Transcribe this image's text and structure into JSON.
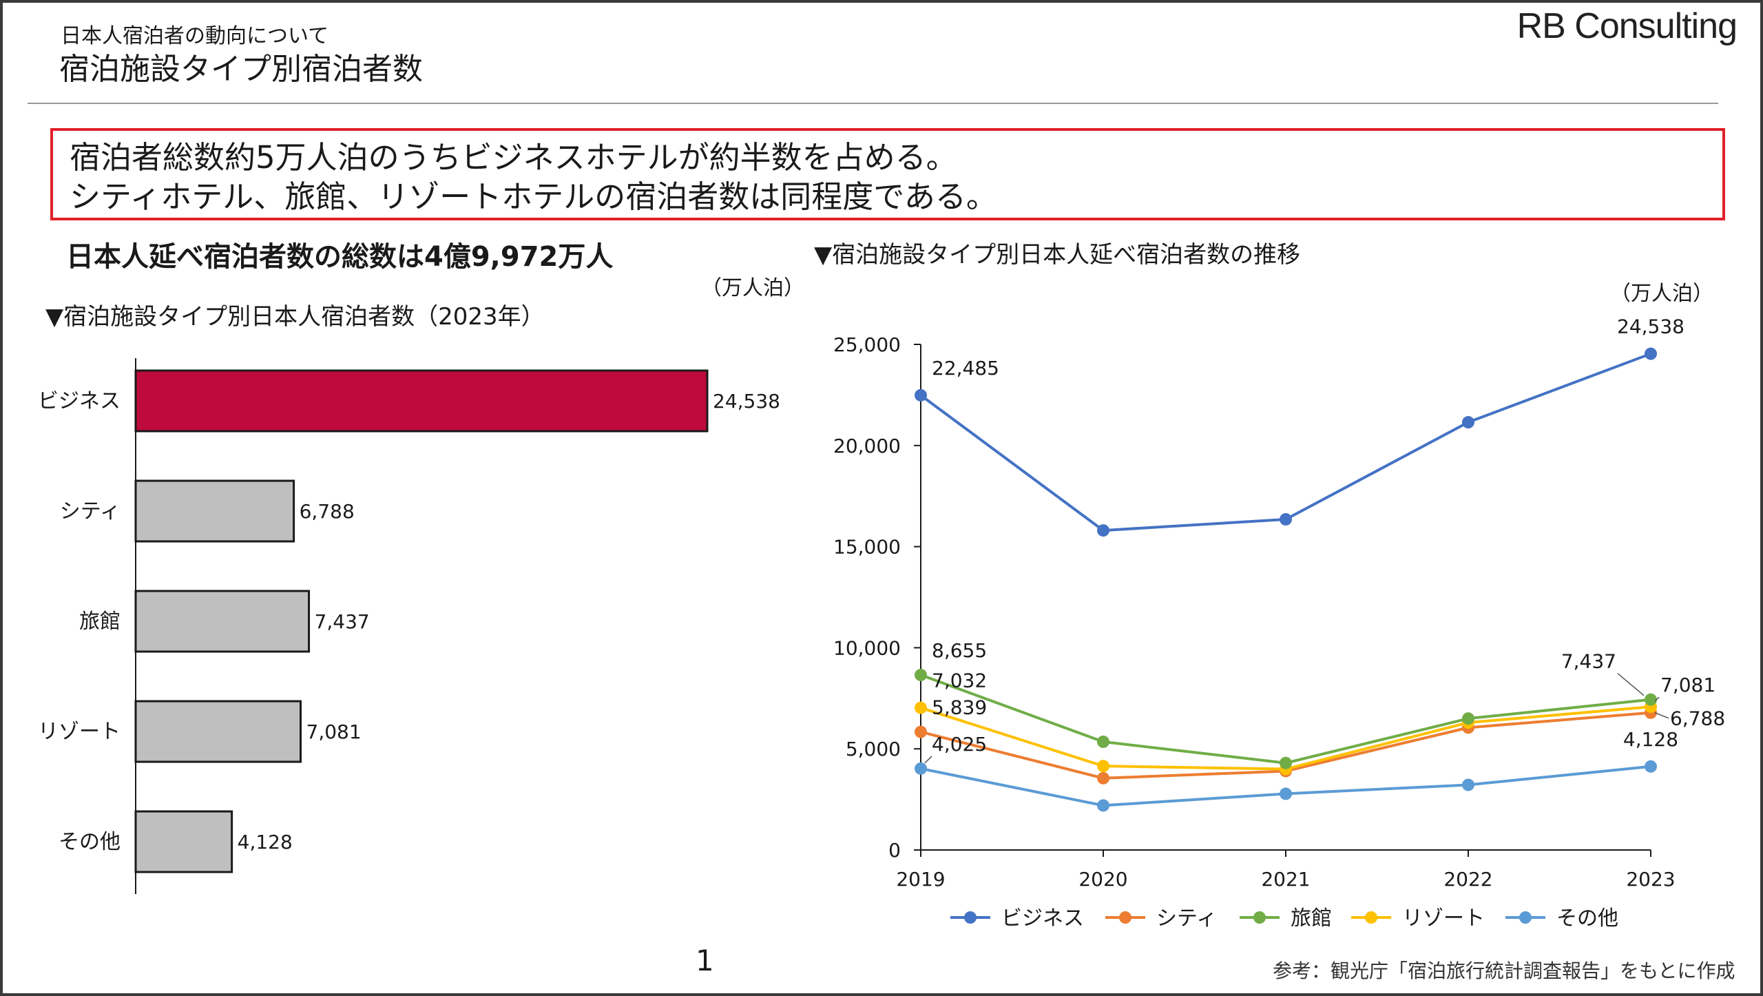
{
  "header": {
    "subtitle": "日本人宿泊者の動向について",
    "title": "宿泊施設タイプ別宿泊者数",
    "logo": "RB Consulting"
  },
  "summary": {
    "line1": "宿泊者総数約5万人泊のうちビジネスホテルが約半数を占める。",
    "line2": "シティホテル、旅館、リゾートホテルの宿泊者数は同程度である。"
  },
  "left_panel": {
    "heading": "日本人延べ宿泊者数の総数は4億9,972万人",
    "caption": "▼宿泊施設タイプ別日本人宿泊者数（2023年）",
    "unit": "（万人泊）"
  },
  "right_panel": {
    "caption": "▼宿泊施設タイプ別日本人延べ宿泊者数の推移",
    "unit": "（万人泊）"
  },
  "footer": {
    "page_number": "1",
    "source": "参考：観光庁「宿泊旅行統計調査報告」をもとに作成"
  },
  "colors": {
    "highlight_box": "#e0202a",
    "bar_highlight": "#be0a3c",
    "bar_default": "#bfbfbf"
  },
  "chart_data": [
    {
      "type": "bar",
      "orientation": "horizontal",
      "categories": [
        "ビジネス",
        "シティ",
        "旅館",
        "リゾート",
        "その他"
      ],
      "values": [
        24538,
        6788,
        7437,
        7081,
        4128
      ],
      "value_labels": [
        "24,538",
        "6,788",
        "7,437",
        "7,081",
        "4,128"
      ],
      "colors": [
        "#be0a3c",
        "#bfbfbf",
        "#bfbfbf",
        "#bfbfbf",
        "#bfbfbf"
      ],
      "xlim": [
        0,
        24538
      ],
      "grid": false,
      "legend": "none"
    },
    {
      "type": "line",
      "x": [
        2019,
        2020,
        2021,
        2022,
        2023
      ],
      "ylim": [
        0,
        25000
      ],
      "yticks": [
        0,
        5000,
        10000,
        15000,
        20000,
        25000
      ],
      "ytick_labels": [
        "0",
        "5,000",
        "10,000",
        "15,000",
        "20,000",
        "25,000"
      ],
      "grid": false,
      "legend": "bottom",
      "series": [
        {
          "name": "ビジネス",
          "color": "#4472c4",
          "values": [
            22485,
            15800,
            16350,
            21150,
            24538
          ],
          "labels": {
            "0": "22,485",
            "4": "24,538"
          }
        },
        {
          "name": "シティ",
          "color": "#ed7d31",
          "values": [
            5839,
            3550,
            3900,
            6050,
            6788
          ],
          "labels": {
            "0": "5,839",
            "4": "6,788"
          }
        },
        {
          "name": "旅館",
          "color": "#70ad47",
          "values": [
            8655,
            5350,
            4300,
            6500,
            7437
          ],
          "labels": {
            "0": "8,655",
            "4": "7,437"
          }
        },
        {
          "name": "リゾート",
          "color": "#ffc000",
          "values": [
            7032,
            4150,
            4000,
            6300,
            7081
          ],
          "labels": {
            "0": "7,032",
            "4": "7,081"
          }
        },
        {
          "name": "その他",
          "color": "#5b9bd5",
          "values": [
            4025,
            2200,
            2780,
            3220,
            4128
          ],
          "labels": {
            "0": "4,025",
            "4": "4,128"
          }
        }
      ]
    }
  ]
}
